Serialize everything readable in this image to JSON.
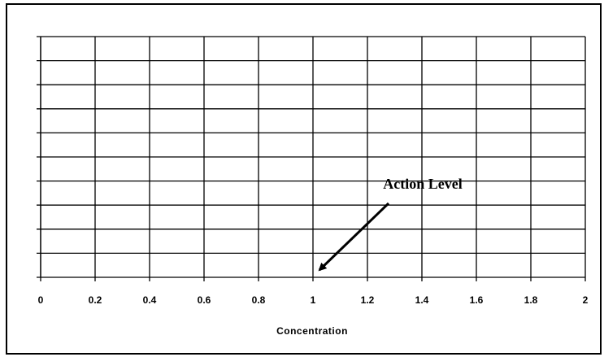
{
  "chart_data": {
    "type": "line",
    "x_label": "Concentration",
    "xlim": [
      0,
      2
    ],
    "xticks": [
      0,
      0.2,
      0.4,
      0.6,
      0.8,
      1,
      1.2,
      1.4,
      1.6,
      1.8,
      2
    ],
    "y_grid_divisions": 10,
    "grid": true,
    "annotation": {
      "text": "Action Level",
      "x": 1
    }
  }
}
